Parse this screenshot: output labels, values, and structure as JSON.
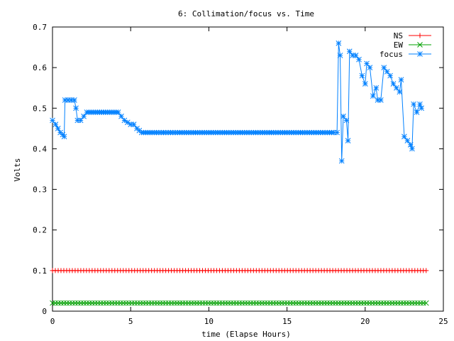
{
  "chart_data": {
    "type": "line",
    "title": "6: Collimation/focus vs. Time",
    "xlabel": "time (Elapse Hours)",
    "ylabel": "Volts",
    "xlim": [
      0,
      25
    ],
    "ylim": [
      0,
      0.7
    ],
    "xticks": [
      0,
      5,
      10,
      15,
      20,
      25
    ],
    "yticks": [
      0,
      0.1,
      0.2,
      0.3,
      0.4,
      0.5,
      0.6,
      0.7
    ],
    "grid": false,
    "legend_position": "top-right",
    "series": [
      {
        "name": "NS",
        "color": "#ff0000",
        "marker": "plus",
        "points": [
          [
            0,
            0.1
          ],
          [
            23.9,
            0.1
          ]
        ]
      },
      {
        "name": "EW",
        "color": "#00a000",
        "marker": "cross",
        "points": [
          [
            0,
            0.02
          ],
          [
            23.9,
            0.02
          ]
        ]
      },
      {
        "name": "focus",
        "color": "#0080ff",
        "marker": "star",
        "points": [
          [
            0.0,
            0.47
          ],
          [
            0.2,
            0.46
          ],
          [
            0.35,
            0.45
          ],
          [
            0.5,
            0.44
          ],
          [
            0.65,
            0.435
          ],
          [
            0.75,
            0.43
          ],
          [
            0.8,
            0.52
          ],
          [
            1.0,
            0.52
          ],
          [
            1.2,
            0.52
          ],
          [
            1.4,
            0.52
          ],
          [
            1.5,
            0.5
          ],
          [
            1.6,
            0.47
          ],
          [
            1.8,
            0.47
          ],
          [
            2.0,
            0.48
          ],
          [
            2.2,
            0.49
          ],
          [
            2.6,
            0.49
          ],
          [
            3.0,
            0.49
          ],
          [
            3.4,
            0.49
          ],
          [
            3.8,
            0.49
          ],
          [
            4.2,
            0.49
          ],
          [
            4.4,
            0.48
          ],
          [
            4.6,
            0.47
          ],
          [
            4.8,
            0.465
          ],
          [
            5.0,
            0.46
          ],
          [
            5.2,
            0.46
          ],
          [
            5.4,
            0.45
          ],
          [
            5.7,
            0.44
          ],
          [
            6.5,
            0.44
          ],
          [
            8.0,
            0.44
          ],
          [
            10.0,
            0.44
          ],
          [
            12.0,
            0.44
          ],
          [
            14.0,
            0.44
          ],
          [
            16.0,
            0.44
          ],
          [
            18.0,
            0.44
          ],
          [
            18.2,
            0.44
          ],
          [
            18.3,
            0.66
          ],
          [
            18.4,
            0.63
          ],
          [
            18.5,
            0.37
          ],
          [
            18.6,
            0.48
          ],
          [
            18.8,
            0.47
          ],
          [
            18.9,
            0.42
          ],
          [
            19.0,
            0.64
          ],
          [
            19.2,
            0.63
          ],
          [
            19.4,
            0.63
          ],
          [
            19.6,
            0.62
          ],
          [
            19.8,
            0.58
          ],
          [
            20.0,
            0.56
          ],
          [
            20.1,
            0.61
          ],
          [
            20.3,
            0.6
          ],
          [
            20.5,
            0.53
          ],
          [
            20.7,
            0.55
          ],
          [
            20.8,
            0.52
          ],
          [
            21.0,
            0.52
          ],
          [
            21.2,
            0.6
          ],
          [
            21.4,
            0.59
          ],
          [
            21.6,
            0.58
          ],
          [
            21.8,
            0.56
          ],
          [
            22.0,
            0.55
          ],
          [
            22.2,
            0.54
          ],
          [
            22.3,
            0.57
          ],
          [
            22.5,
            0.43
          ],
          [
            22.7,
            0.42
          ],
          [
            22.9,
            0.41
          ],
          [
            23.0,
            0.4
          ],
          [
            23.1,
            0.51
          ],
          [
            23.3,
            0.49
          ],
          [
            23.5,
            0.51
          ],
          [
            23.6,
            0.5
          ]
        ]
      }
    ]
  }
}
